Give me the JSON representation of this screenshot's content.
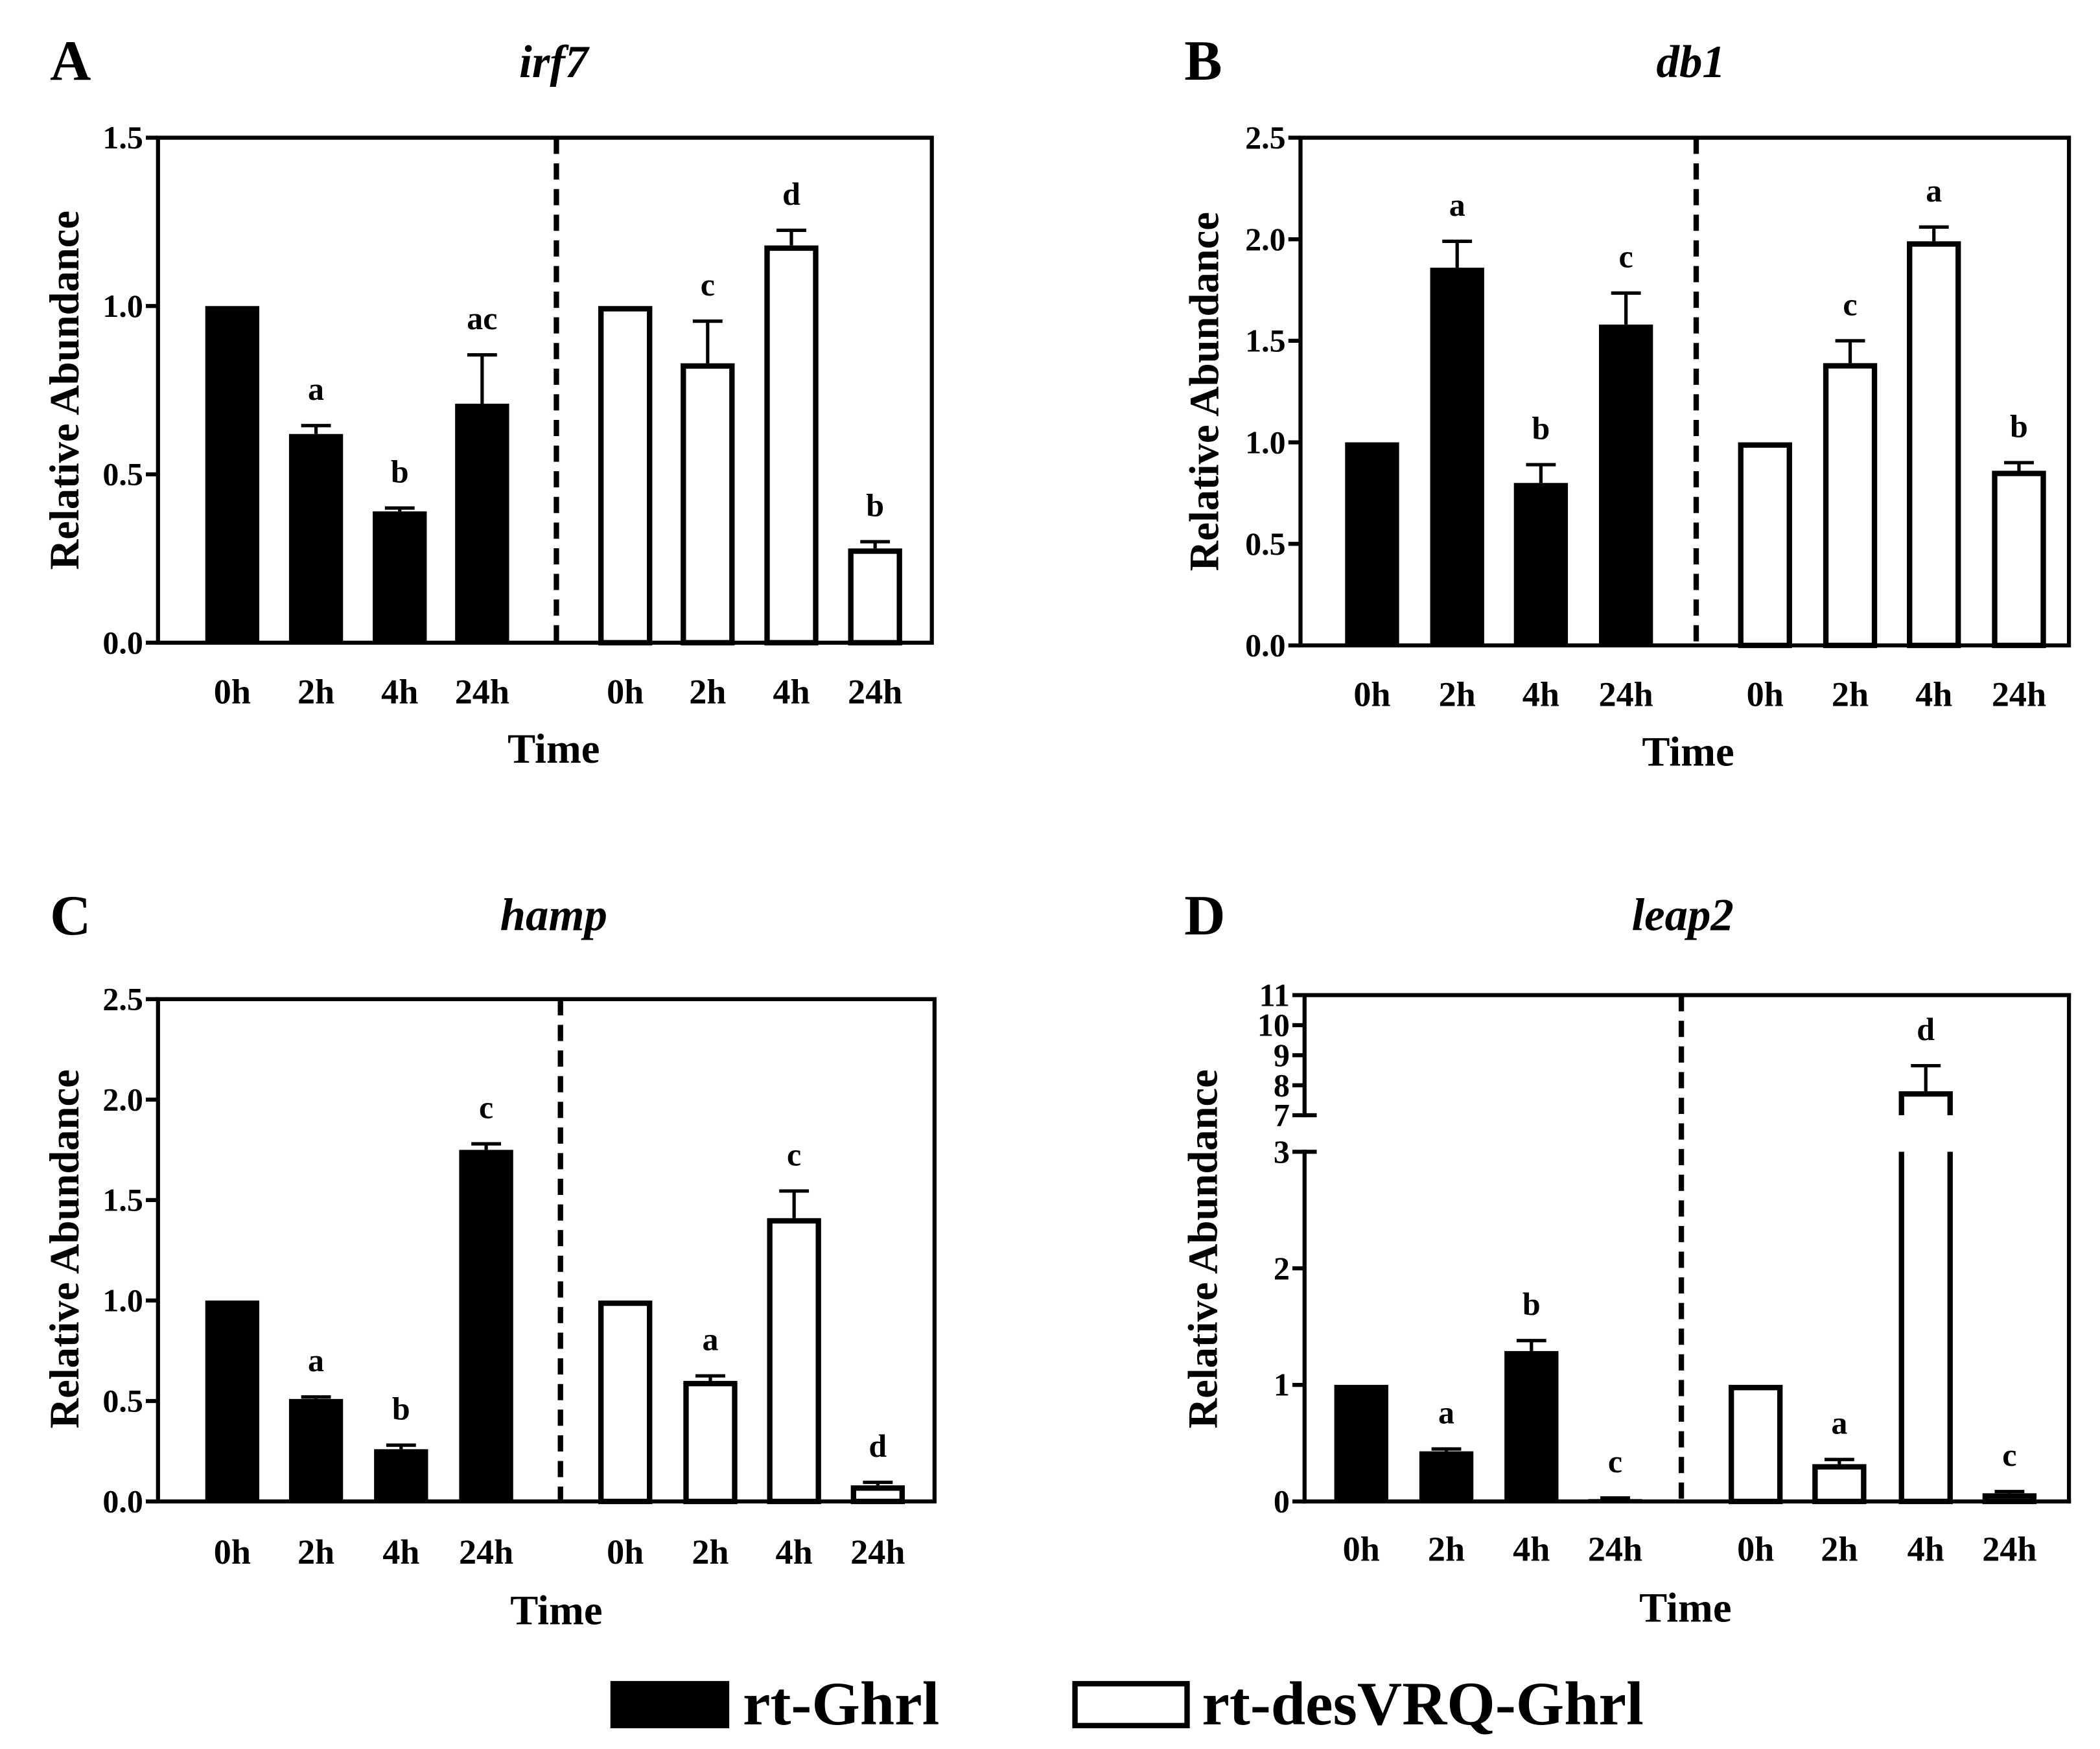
{
  "chart_data": [
    {
      "panel": "A",
      "type": "bar",
      "title": "irf7",
      "xlabel": "Time",
      "ylabel": "Relative Abundance",
      "ylim": [
        0,
        1.5
      ],
      "yticks": [
        "0.0",
        "0.5",
        "1.0",
        "1.5"
      ],
      "grid": false,
      "legend_position": "bottom-center",
      "categories": [
        "0h",
        "2h",
        "4h",
        "24h"
      ],
      "series": [
        {
          "name": "rt-Ghrl",
          "fill": "#000000",
          "stroke": "#000000",
          "values": [
            1.0,
            0.62,
            0.39,
            0.71
          ],
          "errors": [
            0,
            0.025,
            0.01,
            0.145
          ],
          "letters": [
            null,
            "a",
            "b",
            "ac"
          ]
        },
        {
          "name": "rt-desVRQ-Ghrl",
          "fill": "#ffffff",
          "stroke": "#000000",
          "values": [
            1.0,
            0.83,
            1.18,
            0.28
          ],
          "errors": [
            0,
            0.125,
            0.045,
            0.02
          ],
          "letters": [
            null,
            "c",
            "d",
            "b"
          ]
        }
      ]
    },
    {
      "panel": "B",
      "type": "bar",
      "title": "db1",
      "xlabel": "Time",
      "ylabel": "Relative Abundance",
      "ylim": [
        0,
        2.5
      ],
      "yticks": [
        "0.0",
        "0.5",
        "1.0",
        "1.5",
        "2.0",
        "2.5"
      ],
      "grid": false,
      "legend_position": "bottom-center",
      "categories": [
        "0h",
        "2h",
        "4h",
        "24h"
      ],
      "series": [
        {
          "name": "rt-Ghrl",
          "fill": "#000000",
          "stroke": "#000000",
          "values": [
            1.0,
            1.86,
            0.8,
            1.58
          ],
          "errors": [
            0,
            0.13,
            0.09,
            0.155
          ],
          "letters": [
            null,
            "a",
            "b",
            "c"
          ]
        },
        {
          "name": "rt-desVRQ-Ghrl",
          "fill": "#ffffff",
          "stroke": "#000000",
          "values": [
            1.0,
            1.39,
            1.99,
            0.86
          ],
          "errors": [
            0,
            0.11,
            0.07,
            0.04
          ],
          "letters": [
            null,
            "c",
            "a",
            "b"
          ]
        }
      ]
    },
    {
      "panel": "C",
      "type": "bar",
      "title": "hamp",
      "xlabel": "Time",
      "ylabel": "Relative Abundance",
      "ylim": [
        0,
        2.5
      ],
      "yticks": [
        "0.0",
        "0.5",
        "1.0",
        "1.5",
        "2.0",
        "2.5"
      ],
      "grid": false,
      "legend_position": "bottom-center",
      "categories": [
        "0h",
        "2h",
        "4h",
        "24h"
      ],
      "series": [
        {
          "name": "rt-Ghrl",
          "fill": "#000000",
          "stroke": "#000000",
          "values": [
            1.0,
            0.51,
            0.26,
            1.75
          ],
          "errors": [
            0,
            0.01,
            0.02,
            0.03
          ],
          "letters": [
            null,
            "a",
            "b",
            "c"
          ]
        },
        {
          "name": "rt-desVRQ-Ghrl",
          "fill": "#ffffff",
          "stroke": "#000000",
          "values": [
            1.0,
            0.6,
            1.41,
            0.08
          ],
          "errors": [
            0,
            0.025,
            0.135,
            0.015
          ],
          "letters": [
            null,
            "a",
            "c",
            "d"
          ]
        }
      ]
    },
    {
      "panel": "D",
      "type": "bar",
      "title": "leap2",
      "xlabel": "Time",
      "ylabel": "Relative Abundance",
      "ylim": [
        0,
        11
      ],
      "y_break": [
        3,
        7
      ],
      "yticks": [
        "0",
        "1",
        "2",
        "3",
        "7",
        "8",
        "9",
        "10",
        "11"
      ],
      "grid": false,
      "legend_position": "bottom-center",
      "categories": [
        "0h",
        "2h",
        "4h",
        "24h"
      ],
      "series": [
        {
          "name": "rt-Ghrl",
          "fill": "#000000",
          "stroke": "#000000",
          "values": [
            1.0,
            0.43,
            1.29,
            0.02
          ],
          "errors": [
            0,
            0.02,
            0.09,
            0.01
          ],
          "letters": [
            null,
            "a",
            "b",
            "c"
          ]
        },
        {
          "name": "rt-desVRQ-Ghrl",
          "fill": "#ffffff",
          "stroke": "#000000",
          "values": [
            1.0,
            0.32,
            7.8,
            0.07
          ],
          "errors": [
            0,
            0.04,
            0.85,
            0.015
          ],
          "letters": [
            null,
            "a",
            "d",
            "c"
          ]
        }
      ]
    }
  ]
}
